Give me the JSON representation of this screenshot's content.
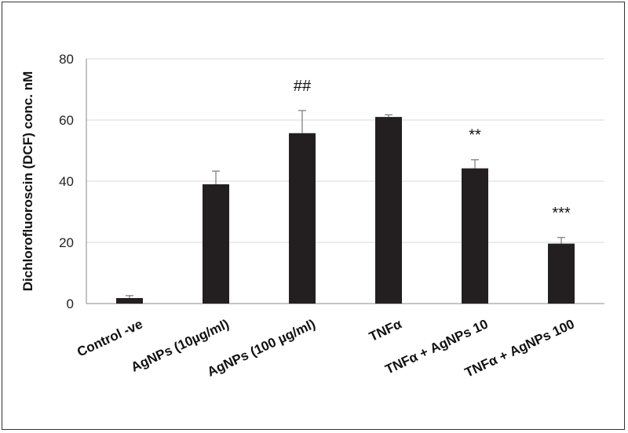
{
  "chart_data": {
    "type": "bar",
    "categories": [
      "Control -ve",
      "AgNPs (10µg/ml)",
      "AgNPs (100  µg/ml)",
      "TNFα",
      "TNFα + AgNPs 10",
      "TNFα + AgNPs 100"
    ],
    "values": [
      1.8,
      39.0,
      55.7,
      61.0,
      44.2,
      19.6
    ],
    "errors": [
      0.8,
      4.3,
      7.4,
      0.7,
      2.8,
      2.0
    ],
    "annotations": [
      "",
      "",
      "##",
      "",
      "**",
      "***"
    ],
    "title": "",
    "xlabel": "",
    "ylabel": "Dichlorofluoroscin (DCF) conc. nM",
    "ylim": [
      0,
      80
    ],
    "yticks": [
      "0",
      "20",
      "40",
      "60",
      "80"
    ],
    "grid": true,
    "bar_color": "#231f20",
    "grid_color": "#d9d9d9"
  }
}
